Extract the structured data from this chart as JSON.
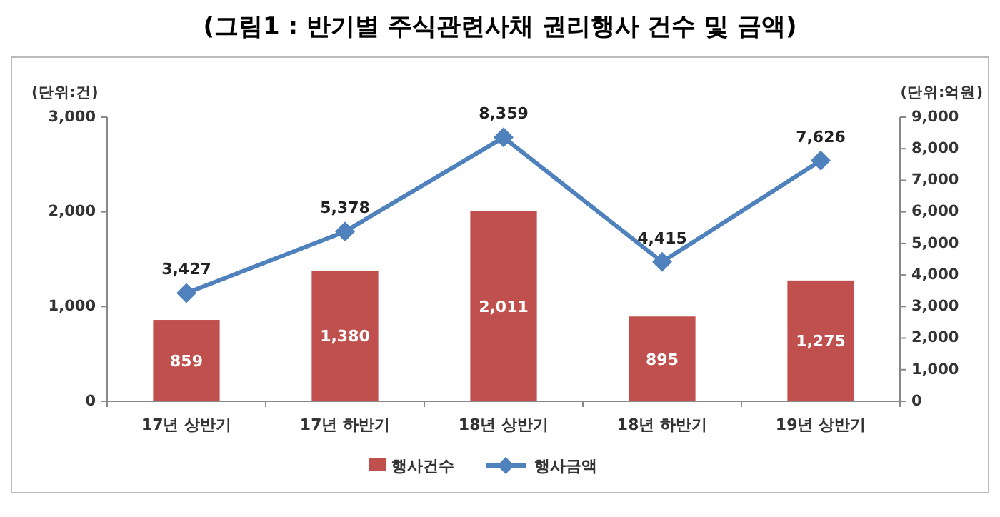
{
  "chart_data": {
    "type": "bar",
    "title": "(그림1 : 반기별 주식관련사채 권리행사 건수 및 금액)",
    "ylabel": "(단위:건)",
    "y2label": "(단위:억원)",
    "categories": [
      "17년 상반기",
      "17년 하반기",
      "18년 상반기",
      "18년 하반기",
      "19년 상반기"
    ],
    "series": [
      {
        "name": "행사건수",
        "color": "#c0504d",
        "values": [
          859,
          1380,
          2011,
          895,
          1275
        ],
        "value_labels": [
          "859",
          "1,380",
          "2,011",
          "895",
          "1,275"
        ]
      },
      {
        "name": "행사금액",
        "type": "line",
        "axis": "y2",
        "color": "#4f81bd",
        "marker": "diamond",
        "values": [
          3427,
          5378,
          8359,
          4415,
          7626
        ],
        "value_labels": [
          "3,427",
          "5,378",
          "8,359",
          "4,415",
          "7,626"
        ]
      }
    ],
    "ylim": [
      0,
      3000
    ],
    "yticks": [
      0,
      {
        "value": 1000,
        "label": "1,000"
      },
      {
        "value": 2000,
        "label": "2,000"
      },
      {
        "value": 3000,
        "label": "3,000"
      }
    ],
    "y2lim": [
      0,
      9000
    ],
    "y2ticks": [
      0,
      {
        "value": 1000,
        "label": "1,000"
      },
      {
        "value": 2000,
        "label": "2,000"
      },
      {
        "value": 3000,
        "label": "3,000"
      },
      {
        "value": 4000,
        "label": "4,000"
      },
      {
        "value": 5000,
        "label": "5,000"
      },
      {
        "value": 6000,
        "label": "6,000"
      },
      {
        "value": 7000,
        "label": "7,000"
      },
      {
        "value": 8000,
        "label": "8,000"
      },
      {
        "value": 9000,
        "label": "9,000"
      }
    ],
    "grid": false,
    "legend": "bottom"
  }
}
